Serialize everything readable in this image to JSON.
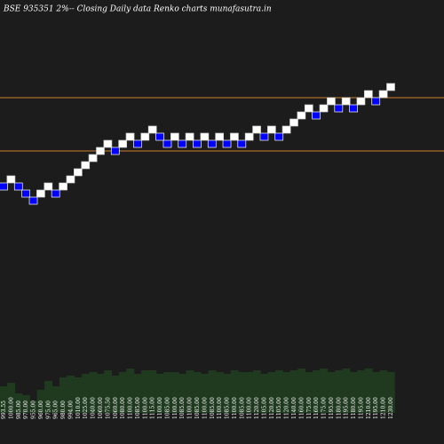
{
  "chart_data": {
    "type": "renko",
    "title": "BSE 935351 2%--  Closing Daily data  Renko  charts munafasutra.in",
    "values": [
      1000,
      1020,
      1000,
      980,
      960,
      980,
      1000,
      980,
      1000,
      1020,
      1040,
      1060,
      1080,
      1100,
      1120,
      1100,
      1120,
      1140,
      1120,
      1140,
      1160,
      1140,
      1120,
      1140,
      1120,
      1140,
      1120,
      1140,
      1120,
      1140,
      1120,
      1140,
      1120,
      1140,
      1160,
      1140,
      1160,
      1140,
      1160,
      1180,
      1200,
      1220,
      1200,
      1220,
      1240,
      1220,
      1240,
      1220,
      1240,
      1260,
      1240,
      1260,
      1280
    ],
    "labels": [
      "993.55",
      "1000.00",
      "985.00",
      "970.00",
      "955.00",
      "960.00",
      "975.00",
      "965.00",
      "980.00",
      "994.00",
      "1010.00",
      "1025.00",
      "1040.00",
      "1060.00",
      "1075.50",
      "1060.00",
      "1080.00",
      "1100.00",
      "1085.00",
      "1100.00",
      "1115.00",
      "1100.00",
      "1085.00",
      "1100.00",
      "1085.00",
      "1100.00",
      "1085.00",
      "1100.00",
      "1085.00",
      "1100.00",
      "1085.00",
      "1100.00",
      "1085.00",
      "1100.00",
      "1120.00",
      "1105.00",
      "1120.00",
      "1105.00",
      "1120.00",
      "1140.00",
      "1160.00",
      "1175.00",
      "1160.00",
      "1175.00",
      "1195.00",
      "1180.00",
      "1195.00",
      "1180.00",
      "1195.00",
      "1210.00",
      "1195.00",
      "1210.00",
      "1230.00"
    ],
    "volume": [
      30,
      34,
      22,
      20,
      14,
      26,
      36,
      30,
      40,
      42,
      40,
      44,
      46,
      44,
      48,
      42,
      46,
      50,
      44,
      48,
      48,
      44,
      46,
      46,
      44,
      48,
      46,
      44,
      48,
      46,
      44,
      48,
      46,
      46,
      48,
      44,
      46,
      48,
      46,
      48,
      50,
      46,
      48,
      50,
      46,
      48,
      50,
      46,
      48,
      50,
      46,
      48,
      46
    ],
    "ylim": [
      275,
      1525
    ],
    "vlim": [
      0,
      120
    ],
    "hlines": [
      1250,
      1100
    ],
    "hline_color": "#d2822d",
    "up_color": "#ffffff",
    "down_color": "#0000ff",
    "volume_color": "#1f3a1f"
  }
}
